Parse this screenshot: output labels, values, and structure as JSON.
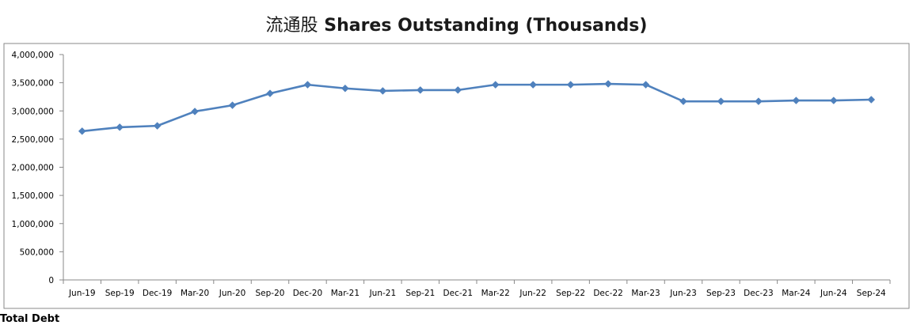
{
  "chart_data": {
    "type": "line",
    "title_cjk": "流通股",
    "title": "Shares Outstanding (Thousands)",
    "xlabel": "",
    "ylabel": "",
    "ylim": [
      0,
      4000000
    ],
    "y_ticks": [
      0,
      500000,
      1000000,
      1500000,
      2000000,
      2500000,
      3000000,
      3500000,
      4000000
    ],
    "y_tick_labels": [
      "0",
      "500,000",
      "1,000,000",
      "1,500,000",
      "2,000,000",
      "2,500,000",
      "3,000,000",
      "3,500,000",
      "4,000,000"
    ],
    "categories": [
      "Jun-19",
      "Sep-19",
      "Dec-19",
      "Mar-20",
      "Jun-20",
      "Sep-20",
      "Dec-20",
      "Mar-21",
      "Jun-21",
      "Sep-21",
      "Dec-21",
      "Mar-22",
      "Jun-22",
      "Sep-22",
      "Dec-22",
      "Mar-23",
      "Jun-23",
      "Sep-23",
      "Dec-23",
      "Mar-24",
      "Jun-24",
      "Sep-24"
    ],
    "series": [
      {
        "values": [
          2640000,
          2710000,
          2735000,
          2990000,
          3100000,
          3310000,
          3465000,
          3400000,
          3355000,
          3370000,
          3370000,
          3465000,
          3465000,
          3465000,
          3480000,
          3465000,
          3170000,
          3170000,
          3170000,
          3185000,
          3185000,
          3200000
        ],
        "color": "#4f81bd",
        "marker": "diamond"
      }
    ],
    "grid": false,
    "legend": "none"
  },
  "below_chart": {
    "cut_off_label": "Total Debt"
  }
}
